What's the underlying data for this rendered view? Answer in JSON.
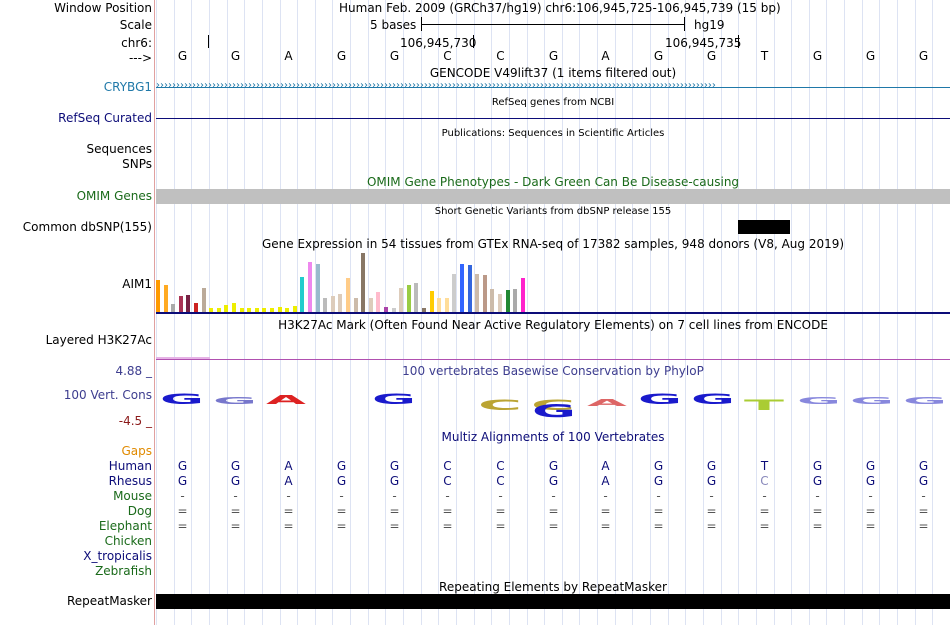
{
  "header": {
    "window_position_label": "Window Position",
    "window_position_value": "Human Feb. 2009 (GRCh37/hg19)   chr6:106,945,725-106,945,739 (15 bp)",
    "scale_label": "Scale",
    "scale_text": "5 bases",
    "scale_assembly": "hg19",
    "chr_label": "chr6:",
    "coord_1": "106,945,730",
    "coord_2": "106,945,735",
    "strand_label": "--->"
  },
  "bases": [
    "G",
    "G",
    "A",
    "G",
    "G",
    "C",
    "C",
    "G",
    "A",
    "G",
    "G",
    "T",
    "G",
    "G",
    "G"
  ],
  "tracks": {
    "gencode": {
      "title": "GENCODE V49lift37 (1 items filtered out)",
      "gene": "CRYBG1"
    },
    "refseq": {
      "title": "RefSeq genes from NCBI",
      "label": "RefSeq Curated"
    },
    "publications": {
      "title": "Publications: Sequences in Scientific Articles",
      "label1": "Sequences",
      "label2": "SNPs"
    },
    "omim": {
      "title": "OMIM Gene Phenotypes - Dark Green Can Be Disease-causing",
      "label": "OMIM Genes"
    },
    "dbsnp": {
      "title": "Short Genetic Variants from dbSNP release 155",
      "label": "Common dbSNP(155)"
    },
    "gtex": {
      "title": "Gene Expression in 54 tissues from GTEx RNA-seq of 17382 samples, 948 donors (V8, Aug 2019)",
      "gene": "AIM1"
    },
    "h3k27ac": {
      "title": "H3K27Ac Mark (Often Found Near Active Regulatory Elements) on 7 cell lines from ENCODE",
      "label": "Layered H3K27Ac"
    },
    "phylop": {
      "title": "100 vertebrates Basewise Conservation by PhyloP",
      "label": "100 Vert. Cons",
      "max": "4.88 _",
      "min": "-4.5 _"
    },
    "multiz": {
      "title": "Multiz Alignments of 100 Vertebrates",
      "gaps_label": "Gaps"
    },
    "repeatmasker": {
      "title": "Repeating Elements by RepeatMasker",
      "label": "RepeatMasker"
    }
  },
  "species": [
    {
      "name": "Human",
      "bases": [
        "G",
        "G",
        "A",
        "G",
        "G",
        "C",
        "C",
        "G",
        "A",
        "G",
        "G",
        "T",
        "G",
        "G",
        "G"
      ]
    },
    {
      "name": "Rhesus",
      "bases": [
        "G",
        "G",
        "A",
        "G",
        "G",
        "C",
        "C",
        "G",
        "A",
        "G",
        "G",
        "C",
        "G",
        "G",
        "G"
      ]
    },
    {
      "name": "Mouse",
      "bases": [
        "-",
        "-",
        "-",
        "-",
        "-",
        "-",
        "-",
        "-",
        "-",
        "-",
        "-",
        "-",
        "-",
        "-",
        "-"
      ]
    },
    {
      "name": "Dog",
      "bases": [
        "=",
        "=",
        "=",
        "=",
        "=",
        "=",
        "=",
        "=",
        "=",
        "=",
        "=",
        "=",
        "=",
        "=",
        "="
      ]
    },
    {
      "name": "Elephant",
      "bases": [
        "=",
        "=",
        "=",
        "=",
        "=",
        "=",
        "=",
        "=",
        "=",
        "=",
        "=",
        "=",
        "=",
        "=",
        "="
      ]
    },
    {
      "name": "Chicken",
      "bases": []
    },
    {
      "name": "X_tropicalis",
      "bases": []
    },
    {
      "name": "Zebrafish",
      "bases": []
    }
  ],
  "colors": {
    "gencode": "#1f78a8",
    "refseq": "#0c0c78",
    "omim": "#1a6a1a",
    "phylop_max": "#3d3d8f",
    "phylop_min": "#8b1a1a",
    "gaps": "#e08a00",
    "species_blue": "#0c0c78",
    "species_green": "#1a6a1a"
  },
  "gtex_bars": [
    {
      "color": "#ff9900",
      "value": 32
    },
    {
      "color": "#ffaa22",
      "value": 27
    },
    {
      "color": "#aaaaaa",
      "value": 8
    },
    {
      "color": "#aa3355",
      "value": 16
    },
    {
      "color": "#772244",
      "value": 17
    },
    {
      "color": "#cc2222",
      "value": 9
    },
    {
      "color": "#bbaa99",
      "value": 24
    },
    {
      "color": "#eeee00",
      "value": 4
    },
    {
      "color": "#eeee00",
      "value": 4
    },
    {
      "color": "#eeee00",
      "value": 7
    },
    {
      "color": "#eeee00",
      "value": 9
    },
    {
      "color": "#eeee00",
      "value": 4
    },
    {
      "color": "#eeee00",
      "value": 4
    },
    {
      "color": "#eeee00",
      "value": 4
    },
    {
      "color": "#eeee00",
      "value": 4
    },
    {
      "color": "#eeee00",
      "value": 4
    },
    {
      "color": "#eeee00",
      "value": 5
    },
    {
      "color": "#eeee00",
      "value": 4
    },
    {
      "color": "#eeee00",
      "value": 6
    },
    {
      "color": "#22cccc",
      "value": 35
    },
    {
      "color": "#ee88ee",
      "value": 50
    },
    {
      "color": "#99bbcc",
      "value": 48
    },
    {
      "color": "#bbbbbb",
      "value": 14
    },
    {
      "color": "#ddccbb",
      "value": 16
    },
    {
      "color": "#ddccbb",
      "value": 18
    },
    {
      "color": "#ffcc88",
      "value": 34
    },
    {
      "color": "#ccbbaa",
      "value": 14
    },
    {
      "color": "#887766",
      "value": 59
    },
    {
      "color": "#ddccbb",
      "value": 14
    },
    {
      "color": "#ffbbcc",
      "value": 20
    },
    {
      "color": "#aa44aa",
      "value": 5
    },
    {
      "color": "#cccccc",
      "value": 4
    },
    {
      "color": "#ddccbb",
      "value": 24
    },
    {
      "color": "#99cc44",
      "value": 27
    },
    {
      "color": "#bbbbbb",
      "value": 29
    },
    {
      "color": "#887766",
      "value": 4
    },
    {
      "color": "#ffcc00",
      "value": 21
    },
    {
      "color": "#ffdd99",
      "value": 14
    },
    {
      "color": "#ffdd99",
      "value": 14
    },
    {
      "color": "#cccccc",
      "value": 38
    },
    {
      "color": "#3366ff",
      "value": 48
    },
    {
      "color": "#3366dd",
      "value": 47
    },
    {
      "color": "#ccbbaa",
      "value": 38
    },
    {
      "color": "#bb9988",
      "value": 37
    },
    {
      "color": "#ccbbaa",
      "value": 23
    },
    {
      "color": "#ddccbb",
      "value": 18
    },
    {
      "color": "#228833",
      "value": 22
    },
    {
      "color": "#aaaaaa",
      "value": 23
    },
    {
      "color": "#ff22cc",
      "value": 34
    }
  ]
}
